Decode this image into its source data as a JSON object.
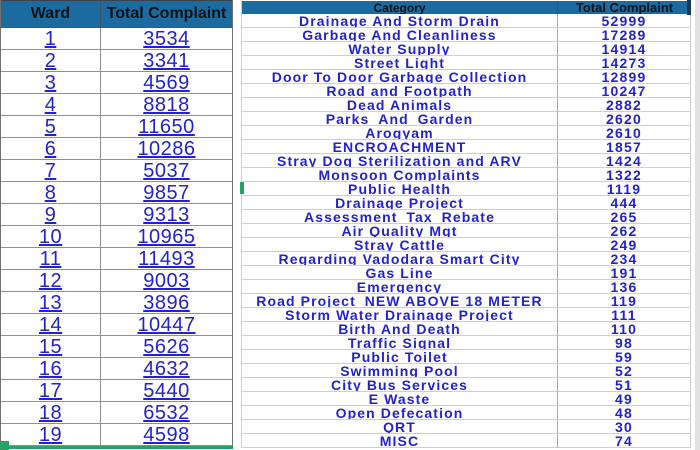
{
  "colors": {
    "header_bg": "#1c6ba0",
    "link_blue": "#2323ce",
    "selection_green": "#21a464"
  },
  "ward_table": {
    "headers": [
      "Ward",
      "Total Complaint"
    ],
    "rows": [
      {
        "ward": "1",
        "total": "3534"
      },
      {
        "ward": "2",
        "total": "3341"
      },
      {
        "ward": "3",
        "total": "4569"
      },
      {
        "ward": "4",
        "total": "8818"
      },
      {
        "ward": "5",
        "total": "11650"
      },
      {
        "ward": "6",
        "total": "10286"
      },
      {
        "ward": "7",
        "total": "5037"
      },
      {
        "ward": "8",
        "total": "9857"
      },
      {
        "ward": "9",
        "total": "9313"
      },
      {
        "ward": "10",
        "total": "10965"
      },
      {
        "ward": "11",
        "total": "11493"
      },
      {
        "ward": "12",
        "total": "9003"
      },
      {
        "ward": "13",
        "total": "3896"
      },
      {
        "ward": "14",
        "total": "10447"
      },
      {
        "ward": "15",
        "total": "5626"
      },
      {
        "ward": "16",
        "total": "4632"
      },
      {
        "ward": "17",
        "total": "5440"
      },
      {
        "ward": "18",
        "total": "6532"
      },
      {
        "ward": "19",
        "total": "4598"
      }
    ]
  },
  "category_table": {
    "headers": [
      "Category",
      "Total Complaint"
    ],
    "rows": [
      {
        "label": "Drainage And Storm Drain",
        "value": "52999",
        "value_link": true,
        "label_underline": false
      },
      {
        "label": "Garbage And Cleanliness",
        "value": "17289",
        "value_link": true,
        "label_underline": false
      },
      {
        "label": "Water Supply",
        "value": "14914",
        "value_link": true,
        "label_underline": false
      },
      {
        "label": "Street Light",
        "value": "14273",
        "value_link": true,
        "label_underline": false
      },
      {
        "label": "Door To Door Garbage Collection",
        "value": "12899",
        "value_link": true,
        "label_underline": false
      },
      {
        "label": "Road and Footpath",
        "value": "10247",
        "value_link": true,
        "label_underline": false
      },
      {
        "label": "Dead Animals",
        "value": "2882",
        "value_link": true,
        "label_underline": false
      },
      {
        "label": "Parks_And_Garden",
        "value": "2620",
        "value_link": true,
        "label_underline": false
      },
      {
        "label": "Arogyam",
        "value": "2610",
        "value_link": true,
        "label_underline": false
      },
      {
        "label": "ENCROACHMENT",
        "value": "1857",
        "value_link": true,
        "label_underline": false
      },
      {
        "label": "Stray Dog Sterilization and ARV",
        "value": "1424",
        "value_link": true,
        "label_underline": false
      },
      {
        "label": "Monsoon Complaints",
        "value": "1322",
        "value_link": true,
        "label_underline": false
      },
      {
        "label": "Public Health",
        "value": "1119",
        "value_link": true,
        "label_underline": false
      },
      {
        "label": "Drainage Project",
        "value": "444",
        "value_link": true,
        "label_underline": false
      },
      {
        "label": "Assessment_Tax_Rebate",
        "value": "265",
        "value_link": true,
        "label_underline": true
      },
      {
        "label": "Air Quality Mgt",
        "value": "262",
        "value_link": true,
        "label_underline": false
      },
      {
        "label": "Stray Cattle",
        "value": "249",
        "value_link": true,
        "label_underline": false
      },
      {
        "label": "Regarding Vadodara Smart City",
        "value": "234",
        "value_link": true,
        "label_underline": false
      },
      {
        "label": "Gas Line",
        "value": "191",
        "value_link": true,
        "label_underline": false
      },
      {
        "label": "Emergency",
        "value": "136",
        "value_link": true,
        "label_underline": false
      },
      {
        "label": "Road Project_NEW ABOVE 18 METER",
        "value": "119",
        "value_link": true,
        "label_underline": false
      },
      {
        "label": "Storm Water Drainage Project",
        "value": "111",
        "value_link": true,
        "label_underline": false
      },
      {
        "label": "Birth And Death",
        "value": "110",
        "value_link": true,
        "label_underline": false
      },
      {
        "label": "Traffic Signal",
        "value": "98",
        "value_link": true,
        "label_underline": false
      },
      {
        "label": "Public Toilet",
        "value": "59",
        "value_link": true,
        "label_underline": false
      },
      {
        "label": "Swimming Pool",
        "value": "52",
        "value_link": true,
        "label_underline": false
      },
      {
        "label": "City Bus Services",
        "value": "51",
        "value_link": true,
        "label_underline": false
      },
      {
        "label": "E Waste",
        "value": "49",
        "value_link": true,
        "label_underline": false
      },
      {
        "label": "Open Defecation",
        "value": "48",
        "value_link": true,
        "label_underline": false
      },
      {
        "label": "QRT",
        "value": "30",
        "value_link": true,
        "label_underline": false
      },
      {
        "label": "MISC",
        "value": "74",
        "value_link": false,
        "label_underline": false
      }
    ]
  }
}
